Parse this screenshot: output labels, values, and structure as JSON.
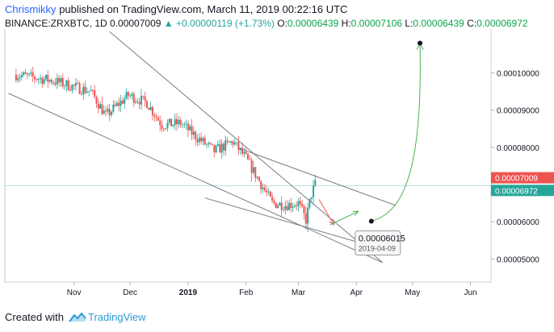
{
  "header": {
    "author": "Chrismikky",
    "published_text": "published on TradingView.com, March 11, 2019 00:22:16 UTC",
    "symbol": "BINANCE:ZRXBTC, 1D",
    "last": "0.00007009",
    "change": "+0.00000119 (+1.73%)",
    "open_label": "O:",
    "open": "0.00006439",
    "high_label": "H:",
    "high": "0.00007106",
    "low_label": "L:",
    "low": "0.00006439",
    "close_label": "C:",
    "close": "0.00006972"
  },
  "footer": {
    "created_with": "Created with",
    "brand": "TradingView",
    "logo_icon": "tradingview-logo-icon"
  },
  "colors": {
    "up": "#26a69a",
    "down": "#ef5350",
    "trendline": "#787b86",
    "green_arrow": "#4caf50",
    "red_arrow": "#ef5350",
    "price_badge_red": "#ef5350",
    "price_badge_teal": "#26a69a"
  },
  "chart_data": {
    "type": "candlestick",
    "interval": "1D",
    "y_axis_ticks": [
      "0.00010000",
      "0.00009000",
      "0.00008000",
      "0.00006000",
      "0.00005000"
    ],
    "x_axis_ticks": [
      "Nov",
      "Dec",
      "2019",
      "Feb",
      "Mar",
      "Apr",
      "May",
      "Jun"
    ],
    "ylim": [
      4.38e-05,
      0.0001118
    ],
    "price_labels": [
      {
        "value": 7.009e-05,
        "text": "0.00007009",
        "color": "#ef5350"
      },
      {
        "value": 6.972e-05,
        "text": "0.00006972",
        "color": "#26a69a"
      }
    ],
    "anchors": [
      {
        "date": "2018-10-01",
        "price": 9.95e-05
      },
      {
        "date": "2018-10-20",
        "price": 9.8e-05
      },
      {
        "date": "2018-11-10",
        "price": 9.5e-05
      },
      {
        "date": "2018-11-18",
        "price": 8.85e-05
      },
      {
        "date": "2018-11-30",
        "price": 9.4e-05
      },
      {
        "date": "2018-12-10",
        "price": 9.2e-05
      },
      {
        "date": "2018-12-18",
        "price": 8.6e-05
      },
      {
        "date": "2018-12-28",
        "price": 8.65e-05
      },
      {
        "date": "2019-01-05",
        "price": 8.3e-05
      },
      {
        "date": "2019-01-15",
        "price": 7.9e-05
      },
      {
        "date": "2019-01-25",
        "price": 8.15e-05
      },
      {
        "date": "2019-02-01",
        "price": 7.7e-05
      },
      {
        "date": "2019-02-08",
        "price": 7.1e-05
      },
      {
        "date": "2019-02-15",
        "price": 6.5e-05
      },
      {
        "date": "2019-02-22",
        "price": 6.45e-05
      },
      {
        "date": "2019-03-01",
        "price": 6.5e-05
      },
      {
        "date": "2019-03-05",
        "price": 6.05e-05
      },
      {
        "date": "2019-03-08",
        "price": 6.75e-05
      },
      {
        "date": "2019-03-10",
        "price": 7.01e-05
      }
    ],
    "trendlines": [
      {
        "p1": {
          "date": "2018-09-27",
          "price": 9.45e-05
        },
        "p2": {
          "date": "2019-04-15",
          "price": 4.905e-05
        }
      },
      {
        "p1": {
          "date": "2018-11-20",
          "price": 0.0001111
        },
        "p2": {
          "date": "2019-04-15",
          "price": 4.905e-05
        }
      },
      {
        "p1": {
          "date": "2019-01-10",
          "price": 6.64e-05
        },
        "p2": {
          "date": "2019-04-04",
          "price": 5.42e-05
        }
      },
      {
        "p1": {
          "date": "2019-01-28",
          "price": 7.98e-05
        },
        "p2": {
          "date": "2019-04-22",
          "price": 6.44e-05
        }
      }
    ],
    "projection": {
      "red_arrow": {
        "from": {
          "date": "2019-03-12",
          "price": 6.6e-05
        },
        "to": {
          "date": "2019-03-20",
          "price": 5.92e-05
        }
      },
      "green_arrow": {
        "from": {
          "date": "2019-03-18",
          "price": 5.92e-05
        },
        "to": {
          "date": "2019-04-02",
          "price": 6.28e-05
        }
      },
      "target_point": {
        "date": "2019-04-09",
        "price": 6.015e-05
      },
      "final_point": {
        "date": "2019-05-05",
        "price": 0.000108
      }
    },
    "annotation": {
      "price": "0.00006015",
      "date": "2019-04-09"
    }
  }
}
